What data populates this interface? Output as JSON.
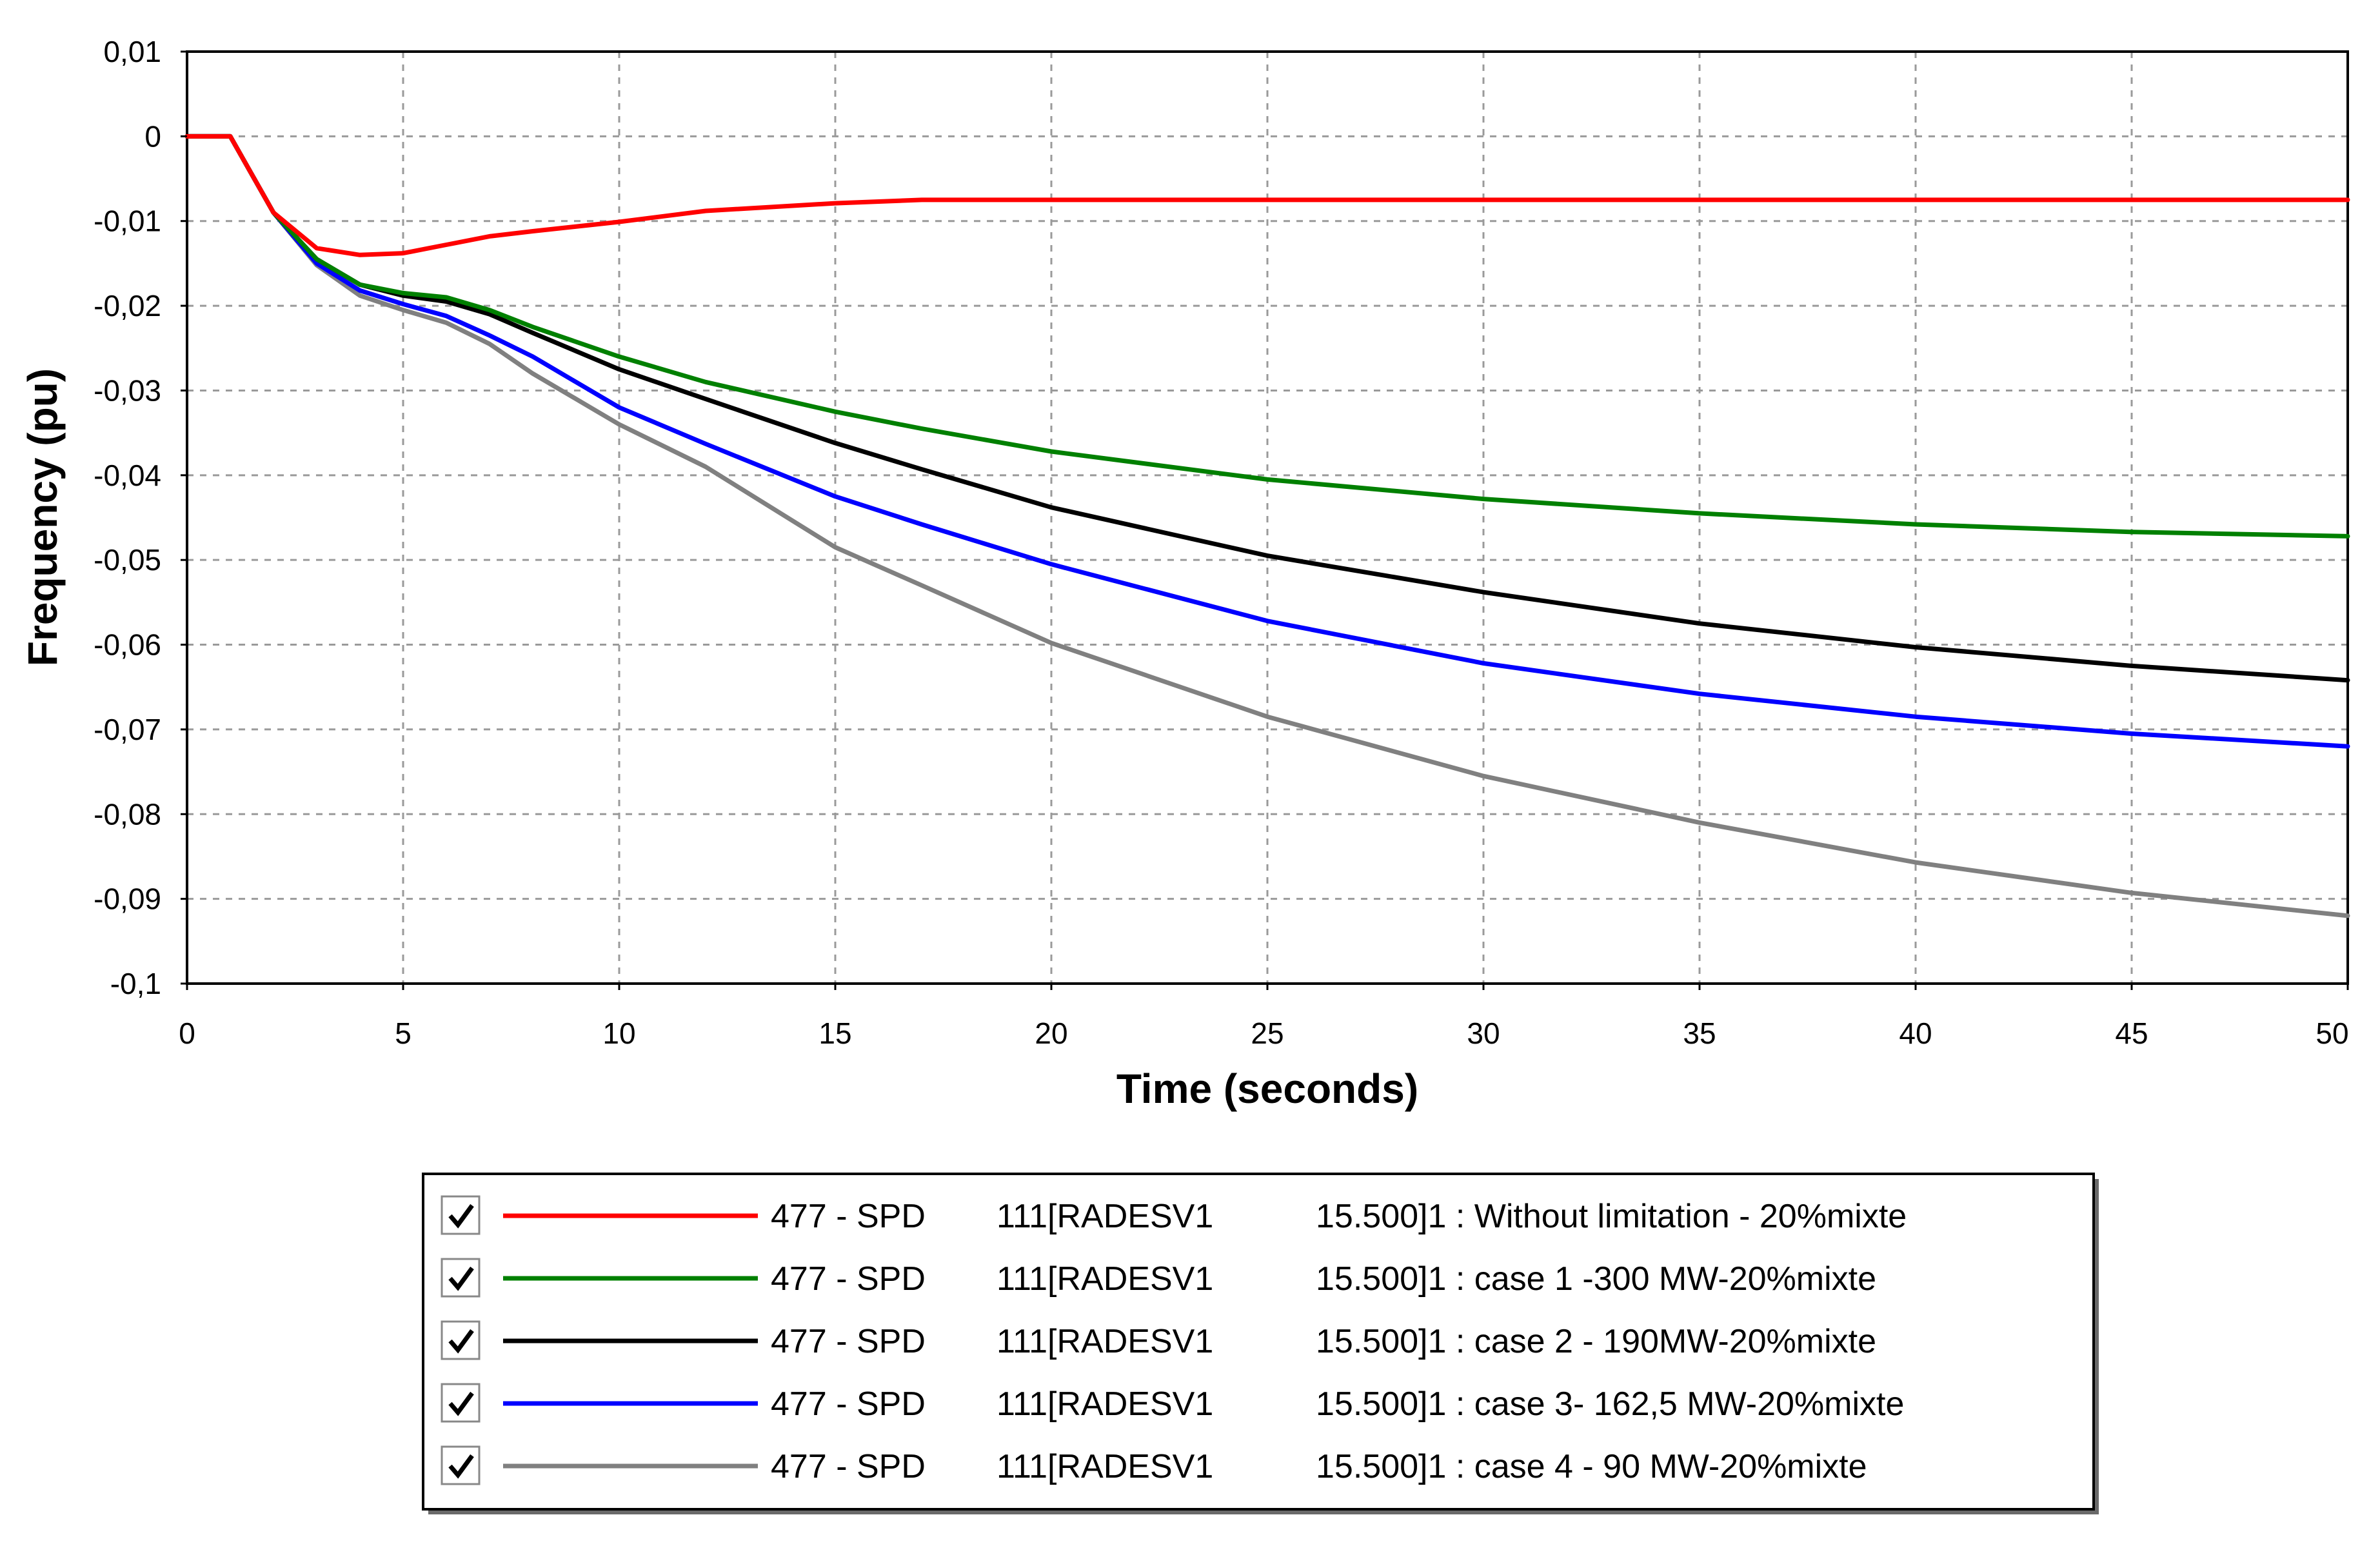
{
  "chart_data": {
    "type": "line",
    "title": "",
    "xlabel": "Time (seconds)",
    "ylabel": "Frequency (pu)",
    "xlim": [
      0,
      50
    ],
    "ylim": [
      -0.1,
      0.01
    ],
    "grid": true,
    "legend_position": "bottom-center",
    "x_ticks": [
      0,
      5,
      10,
      15,
      20,
      25,
      30,
      35,
      40,
      45,
      50
    ],
    "x_tick_labels": [
      "0",
      "5",
      "10",
      "15",
      "20",
      "25",
      "30",
      "35",
      "40",
      "45",
      "50"
    ],
    "y_ticks": [
      0.01,
      0,
      -0.01,
      -0.02,
      -0.03,
      -0.04,
      -0.05,
      -0.06,
      -0.07,
      -0.08,
      -0.09,
      -0.1
    ],
    "y_tick_labels": [
      "0,01",
      "0",
      "-0,01",
      "-0,02",
      "-0,03",
      "-0,04",
      "-0,05",
      "-0,06",
      "-0,07",
      "-0,08",
      "-0,09",
      "-0,1"
    ],
    "x": [
      0,
      1,
      2,
      3,
      4,
      5,
      6,
      7,
      8,
      10,
      12,
      15,
      17,
      20,
      25,
      30,
      35,
      40,
      45,
      50
    ],
    "series": [
      {
        "name": "Without limitation - 20%mixte",
        "color": "#ff0000",
        "legend_cols": [
          "477 - SPD",
          "111[RADESV1",
          "15.500]1 : Without limitation - 20%mixte"
        ],
        "values": [
          0,
          0,
          -0.009,
          -0.0132,
          -0.014,
          -0.0138,
          -0.0128,
          -0.0118,
          -0.0112,
          -0.0101,
          -0.0088,
          -0.0079,
          -0.0075,
          -0.0075,
          -0.0075,
          -0.0075,
          -0.0075,
          -0.0075,
          -0.0075,
          -0.0075
        ]
      },
      {
        "name": "case 1 -300 MW-20%mixte",
        "color": "#008000",
        "legend_cols": [
          "477 - SPD",
          "111[RADESV1",
          "15.500]1 : case 1 -300 MW-20%mixte"
        ],
        "values": [
          0,
          0,
          -0.009,
          -0.0145,
          -0.0175,
          -0.0185,
          -0.019,
          -0.0205,
          -0.0225,
          -0.026,
          -0.029,
          -0.0325,
          -0.0345,
          -0.0372,
          -0.0405,
          -0.0428,
          -0.0445,
          -0.0458,
          -0.0467,
          -0.0472
        ]
      },
      {
        "name": "case 2 - 190MW-20%mixte",
        "color": "#000000",
        "legend_cols": [
          "477 - SPD",
          "111[RADESV1",
          "15.500]1 : case 2 - 190MW-20%mixte"
        ],
        "values": [
          0,
          0,
          -0.009,
          -0.0145,
          -0.0175,
          -0.0188,
          -0.0195,
          -0.021,
          -0.0232,
          -0.0275,
          -0.031,
          -0.0362,
          -0.0393,
          -0.0438,
          -0.0495,
          -0.0538,
          -0.0575,
          -0.0603,
          -0.0625,
          -0.0642
        ]
      },
      {
        "name": "case 3- 162,5 MW-20%mixte",
        "color": "#0000ff",
        "legend_cols": [
          "477 - SPD",
          "111[RADESV1",
          "15.500]1 : case 3- 162,5 MW-20%mixte"
        ],
        "values": [
          0,
          0,
          -0.009,
          -0.015,
          -0.0182,
          -0.0198,
          -0.0212,
          -0.0235,
          -0.026,
          -0.032,
          -0.0363,
          -0.0425,
          -0.0458,
          -0.0505,
          -0.0572,
          -0.0622,
          -0.0658,
          -0.0685,
          -0.0705,
          -0.072
        ]
      },
      {
        "name": "case 4 - 90 MW-20%mixte",
        "color": "#808080",
        "legend_cols": [
          "477 - SPD",
          "111[RADESV1",
          "15.500]1 : case 4 - 90 MW-20%mixte"
        ],
        "values": [
          0,
          0,
          -0.009,
          -0.0152,
          -0.0188,
          -0.0205,
          -0.022,
          -0.0245,
          -0.028,
          -0.034,
          -0.039,
          -0.0485,
          -0.053,
          -0.0598,
          -0.0685,
          -0.0755,
          -0.081,
          -0.0857,
          -0.0893,
          -0.092
        ]
      }
    ]
  }
}
